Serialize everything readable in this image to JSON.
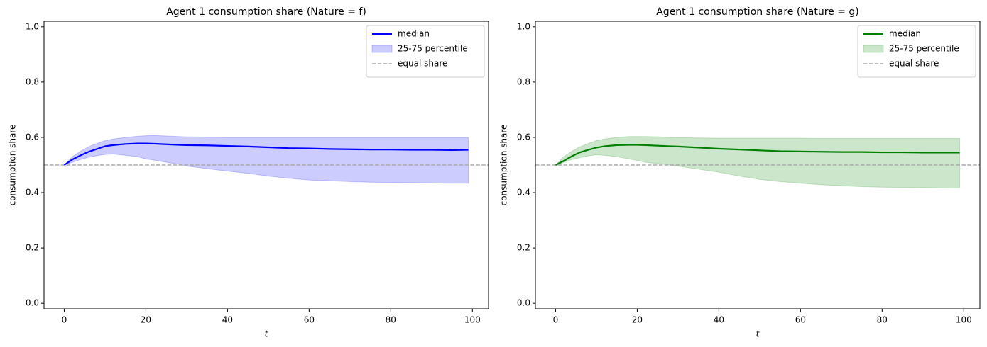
{
  "chart_data": [
    {
      "type": "line",
      "title": "Agent 1 consumption share (Nature = f)",
      "xlabel": "t",
      "ylabel": "consumption share",
      "x": [
        0,
        2,
        4,
        6,
        8,
        10,
        12,
        15,
        18,
        20,
        22,
        25,
        28,
        30,
        35,
        40,
        45,
        50,
        55,
        60,
        65,
        70,
        75,
        80,
        85,
        90,
        95,
        99
      ],
      "series": [
        {
          "name": "median",
          "color": "#0000ff",
          "values": [
            0.5,
            0.52,
            0.535,
            0.548,
            0.558,
            0.568,
            0.572,
            0.576,
            0.578,
            0.578,
            0.577,
            0.575,
            0.573,
            0.572,
            0.571,
            0.569,
            0.567,
            0.564,
            0.561,
            0.56,
            0.558,
            0.557,
            0.556,
            0.556,
            0.555,
            0.555,
            0.554,
            0.555
          ]
        },
        {
          "name": "25-75 percentile",
          "color": "#0000ff",
          "alpha": 0.2,
          "upper": [
            0.5,
            0.53,
            0.55,
            0.566,
            0.578,
            0.588,
            0.594,
            0.6,
            0.604,
            0.606,
            0.607,
            0.605,
            0.603,
            0.602,
            0.601,
            0.6,
            0.6,
            0.6,
            0.6,
            0.6,
            0.6,
            0.6,
            0.6,
            0.6,
            0.6,
            0.6,
            0.6,
            0.6
          ],
          "lower": [
            0.5,
            0.51,
            0.52,
            0.528,
            0.534,
            0.538,
            0.54,
            0.535,
            0.53,
            0.522,
            0.518,
            0.51,
            0.503,
            0.496,
            0.487,
            0.478,
            0.47,
            0.46,
            0.452,
            0.446,
            0.443,
            0.44,
            0.438,
            0.437,
            0.436,
            0.435,
            0.434,
            0.434
          ]
        }
      ],
      "hlines": [
        {
          "name": "equal share",
          "value": 0.5,
          "color": "#aaaaaa",
          "style": "dashed"
        }
      ],
      "xlim": [
        -4.95,
        103.95
      ],
      "ylim": [
        -0.02,
        1.02
      ],
      "xticks": [
        0,
        20,
        40,
        60,
        80,
        100
      ],
      "yticks": [
        {
          "value": 0,
          "label": "0.0"
        },
        0.2,
        0.4,
        0.6,
        0.8,
        {
          "value": 1,
          "label": "1.0"
        }
      ],
      "legend": "upper right"
    },
    {
      "type": "line",
      "title": "Agent 1 consumption share (Nature = g)",
      "xlabel": "t",
      "ylabel": "consumption share",
      "x": [
        0,
        2,
        4,
        6,
        8,
        10,
        12,
        15,
        18,
        20,
        22,
        25,
        28,
        30,
        35,
        40,
        45,
        50,
        55,
        60,
        65,
        70,
        75,
        80,
        85,
        90,
        95,
        99
      ],
      "series": [
        {
          "name": "median",
          "color": "#008000",
          "values": [
            0.5,
            0.515,
            0.532,
            0.546,
            0.555,
            0.563,
            0.568,
            0.572,
            0.573,
            0.573,
            0.572,
            0.57,
            0.568,
            0.567,
            0.563,
            0.559,
            0.556,
            0.553,
            0.55,
            0.549,
            0.548,
            0.547,
            0.547,
            0.546,
            0.546,
            0.545,
            0.545,
            0.545
          ]
        },
        {
          "name": "25-75 percentile",
          "color": "#008000",
          "alpha": 0.2,
          "upper": [
            0.5,
            0.53,
            0.55,
            0.566,
            0.578,
            0.588,
            0.594,
            0.6,
            0.603,
            0.603,
            0.603,
            0.602,
            0.6,
            0.599,
            0.598,
            0.597,
            0.597,
            0.597,
            0.597,
            0.597,
            0.596,
            0.596,
            0.596,
            0.596,
            0.596,
            0.596,
            0.596,
            0.596
          ],
          "lower": [
            0.5,
            0.51,
            0.52,
            0.527,
            0.533,
            0.537,
            0.535,
            0.53,
            0.522,
            0.517,
            0.51,
            0.505,
            0.5,
            0.496,
            0.485,
            0.474,
            0.46,
            0.448,
            0.44,
            0.434,
            0.429,
            0.425,
            0.422,
            0.42,
            0.419,
            0.418,
            0.417,
            0.416
          ]
        }
      ],
      "hlines": [
        {
          "name": "equal share",
          "value": 0.5,
          "color": "#aaaaaa",
          "style": "dashed"
        }
      ],
      "xlim": [
        -4.95,
        103.95
      ],
      "ylim": [
        -0.02,
        1.02
      ],
      "xticks": [
        0,
        20,
        40,
        60,
        80,
        100
      ],
      "yticks": [
        {
          "value": 0,
          "label": "0.0"
        },
        0.2,
        0.4,
        0.6,
        0.8,
        {
          "value": 1,
          "label": "1.0"
        }
      ],
      "legend": "upper right"
    }
  ]
}
